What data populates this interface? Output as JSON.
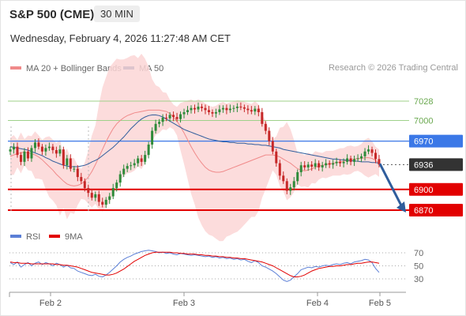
{
  "header": {
    "title": "S&P 500 (CME)",
    "timeframe": "30 MIN",
    "datetime": "Wednesday, February 4, 2026 11:27:48 AM CET"
  },
  "credit": "Research © 2026 Trading Central",
  "colors": {
    "ma20": "#f08a8a",
    "ma50": "#2f5d9c",
    "bollinger_fill": "#fbd6d6",
    "resistance_line": "#9fd18a",
    "pivot_blue": "#3b78e7",
    "current_dark": "#333333",
    "support_red": "#e20000",
    "up_candle": "#2e8b3a",
    "down_candle": "#c62828",
    "rsi": "#5b7fd6",
    "rsi_ma": "#e20000",
    "arrow": "#2f5d9c"
  },
  "chart_data": [
    {
      "type": "candlestick",
      "legend": [
        {
          "name": "MA 20 + Bollinger Bands",
          "color": "#f08a8a"
        },
        {
          "name": "MA 50",
          "color": "#2f5d9c"
        }
      ],
      "x_ticks": [
        "Feb 2",
        "Feb 3",
        "Feb 4",
        "Feb 5"
      ],
      "y_range": [
        6863,
        7045
      ],
      "levels": [
        {
          "label": "7028",
          "value": 7028,
          "kind": "resistance"
        },
        {
          "label": "7000",
          "value": 7000,
          "kind": "resistance"
        },
        {
          "label": "6970",
          "value": 6970,
          "kind": "pivot"
        },
        {
          "label": "6936",
          "value": 6936,
          "kind": "current"
        },
        {
          "label": "6900",
          "value": 6900,
          "kind": "support"
        },
        {
          "label": "6870",
          "value": 6870,
          "kind": "support"
        }
      ],
      "close": [
        6958,
        6962,
        6950,
        6940,
        6955,
        6945,
        6960,
        6968,
        6962,
        6955,
        6960,
        6962,
        6957,
        6952,
        6958,
        6935,
        6945,
        6930,
        6930,
        6918,
        6912,
        6902,
        6895,
        6888,
        6893,
        6882,
        6878,
        6885,
        6890,
        6902,
        6910,
        6922,
        6930,
        6934,
        6935,
        6938,
        6945,
        6940,
        6950,
        6965,
        6985,
        6995,
        6998,
        7004,
        7003,
        7008,
        7005,
        7002,
        7009,
        7012,
        7015,
        7018,
        7016,
        7020,
        7018,
        7015,
        7012,
        7010,
        7012,
        7016,
        7018,
        7015,
        7017,
        7018,
        7020,
        7019,
        7017,
        7015,
        7013,
        7017,
        7012,
        6995,
        6985,
        6970,
        6955,
        6938,
        6920,
        6912,
        6898,
        6903,
        6912,
        6925,
        6935,
        6932,
        6936,
        6933,
        6938,
        6932,
        6935,
        6938,
        6936,
        6938,
        6940,
        6938,
        6940,
        6945,
        6940,
        6944,
        6945,
        6948,
        6955,
        6958,
        6953,
        6944,
        6936
      ],
      "ma20": [
        6948,
        6950,
        6952,
        6953,
        6954,
        6953,
        6952,
        6950,
        6947,
        6943,
        6938,
        6933,
        6928,
        6922,
        6917,
        6912,
        6908,
        6906,
        6905,
        6906,
        6908,
        6912,
        6918,
        6926,
        6936,
        6947,
        6958,
        6969,
        6979,
        6988,
        6995,
        7000,
        7004,
        7007,
        7009,
        7011,
        7012,
        7013,
        7014,
        7015,
        7015,
        7015,
        7015,
        7014,
        7013,
        7010,
        7005,
        6999,
        6991,
        6982,
        6972,
        6962,
        6953,
        6945,
        6938,
        6932,
        6928,
        6926,
        6925,
        6925,
        6926,
        6928,
        6930,
        6932,
        6934,
        6936,
        6938,
        6940,
        6942,
        6944,
        6946,
        6948,
        6950,
        6950,
        6950,
        6949,
        6947,
        6944,
        6941,
        6938,
        6934,
        6930,
        6928,
        6927,
        6928,
        6930,
        6932,
        6934,
        6935,
        6936,
        6937,
        6938,
        6939,
        6940,
        6941,
        6942,
        6943,
        6944,
        6945,
        6945,
        6946,
        6946,
        6945,
        6942,
        6938
      ],
      "ma50": [
        6962,
        6961,
        6960,
        6959,
        6958,
        6957,
        6955,
        6953,
        6951,
        6949,
        6946,
        6944,
        6941,
        6939,
        6937,
        6935,
        6934,
        6933,
        6933,
        6933,
        6934,
        6935,
        6937,
        6940,
        6942,
        6945,
        6949,
        6953,
        6957,
        6961,
        6966,
        6971,
        6976,
        6982,
        6988,
        6993,
        6998,
        7002,
        7005,
        7007,
        7008,
        7008,
        7007,
        7005,
        7002,
        6999,
        6996,
        6993,
        6990,
        6987,
        6985,
        6983,
        6981,
        6979,
        6977,
        6975,
        6973,
        6972,
        6971,
        6970,
        6969,
        6969,
        6968,
        6968,
        6967,
        6967,
        6967,
        6966,
        6966,
        6965,
        6965,
        6964,
        6964,
        6963,
        6962,
        6961,
        6960,
        6958,
        6957,
        6956,
        6955,
        6954,
        6953,
        6952,
        6951,
        6950,
        6949,
        6948,
        6947,
        6946,
        6945,
        6944,
        6944,
        6943,
        6943,
        6942,
        6942,
        6941,
        6941,
        6940,
        6940,
        6940,
        6939,
        6939,
        6938
      ],
      "forecast_arrow": {
        "from": 6936,
        "to": 6870
      }
    },
    {
      "type": "line",
      "legend": [
        {
          "name": "RSI",
          "color": "#5b7fd6"
        },
        {
          "name": "9MA",
          "color": "#e20000"
        }
      ],
      "y_ticks": [
        "70",
        "50",
        "30"
      ],
      "y_range": [
        15,
        85
      ],
      "rsi": [
        55,
        52,
        56,
        48,
        52,
        55,
        50,
        54,
        56,
        52,
        55,
        53,
        50,
        54,
        52,
        48,
        51,
        47,
        46,
        42,
        40,
        38,
        36,
        35,
        37,
        34,
        33,
        36,
        40,
        45,
        50,
        56,
        60,
        63,
        65,
        68,
        70,
        72,
        73,
        74,
        73,
        72,
        70,
        71,
        69,
        70,
        68,
        67,
        69,
        68,
        67,
        66,
        67,
        66,
        65,
        64,
        65,
        63,
        64,
        62,
        63,
        61,
        62,
        60,
        61,
        59,
        60,
        57,
        55,
        58,
        55,
        50,
        48,
        45,
        42,
        38,
        33,
        28,
        26,
        28,
        33,
        38,
        44,
        46,
        48,
        47,
        49,
        48,
        50,
        51,
        50,
        52,
        53,
        52,
        54,
        55,
        53,
        56,
        57,
        58,
        60,
        59,
        55,
        46,
        40
      ],
      "rsi_ma": [
        56,
        55,
        55,
        54,
        54,
        54,
        53,
        53,
        53,
        53,
        53,
        53,
        53,
        52,
        52,
        51,
        51,
        50,
        49,
        48,
        46,
        44,
        42,
        40,
        39,
        38,
        37,
        36,
        36,
        37,
        39,
        42,
        45,
        49,
        53,
        57,
        60,
        63,
        66,
        68,
        70,
        71,
        71,
        71,
        71,
        71,
        70,
        70,
        69,
        69,
        68,
        68,
        68,
        67,
        67,
        66,
        66,
        65,
        65,
        64,
        64,
        63,
        63,
        62,
        62,
        61,
        61,
        60,
        59,
        58,
        57,
        56,
        54,
        52,
        50,
        47,
        44,
        41,
        38,
        35,
        33,
        33,
        34,
        36,
        39,
        42,
        44,
        46,
        47,
        48,
        49,
        49,
        50,
        50,
        51,
        52,
        52,
        53,
        54,
        54,
        55,
        56,
        56,
        55,
        54
      ]
    }
  ]
}
